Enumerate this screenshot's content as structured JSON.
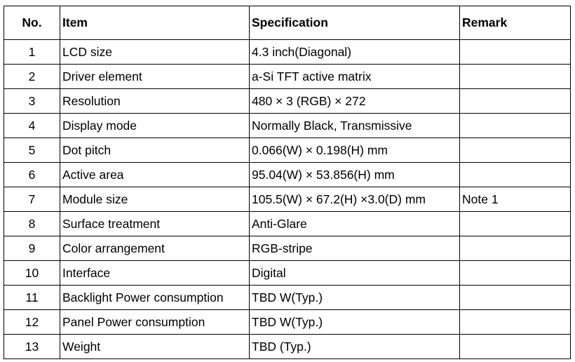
{
  "table": {
    "header": [
      "No.",
      "Item",
      "Specification",
      "Remark"
    ],
    "rows": [
      {
        "no": "1",
        "item": "LCD size",
        "spec": "4.3 inch(Diagonal)"
      },
      {
        "no": "2",
        "item": "Driver element",
        "spec": "a-Si TFT active matrix"
      },
      {
        "no": "3",
        "item": "Resolution",
        "spec": "480 × 3 (RGB) × 272"
      },
      {
        "no": "4",
        "item": "Display mode",
        "spec": "Normally Black, Transmissive"
      },
      {
        "no": "5",
        "item": "Dot pitch",
        "spec": "0.066(W) × 0.198(H) mm"
      },
      {
        "no": "6",
        "item": "Active area",
        "spec": "95.04(W) × 53.856(H) mm"
      },
      {
        "no": "7",
        "item": "Module size",
        "spec": "105.5(W) × 67.2(H) ×3.0(D) mm",
        "remark": "Note 1"
      },
      {
        "no": "8",
        "item": "Surface treatment",
        "spec": "Anti-Glare"
      },
      {
        "no": "9",
        "item": "Color arrangement",
        "spec": "RGB-stripe"
      },
      {
        "no": "10",
        "item": "Interface",
        "spec": "Digital"
      },
      {
        "no": "11",
        "item": "Backlight Power consumption",
        "spec": "TBD W(Typ.)"
      },
      {
        "no": "12",
        "item": "Panel Power consumption",
        "spec": "TBD W(Typ.)"
      },
      {
        "no": "13",
        "item": "Weight",
        "spec": "TBD (Typ.)"
      }
    ]
  }
}
